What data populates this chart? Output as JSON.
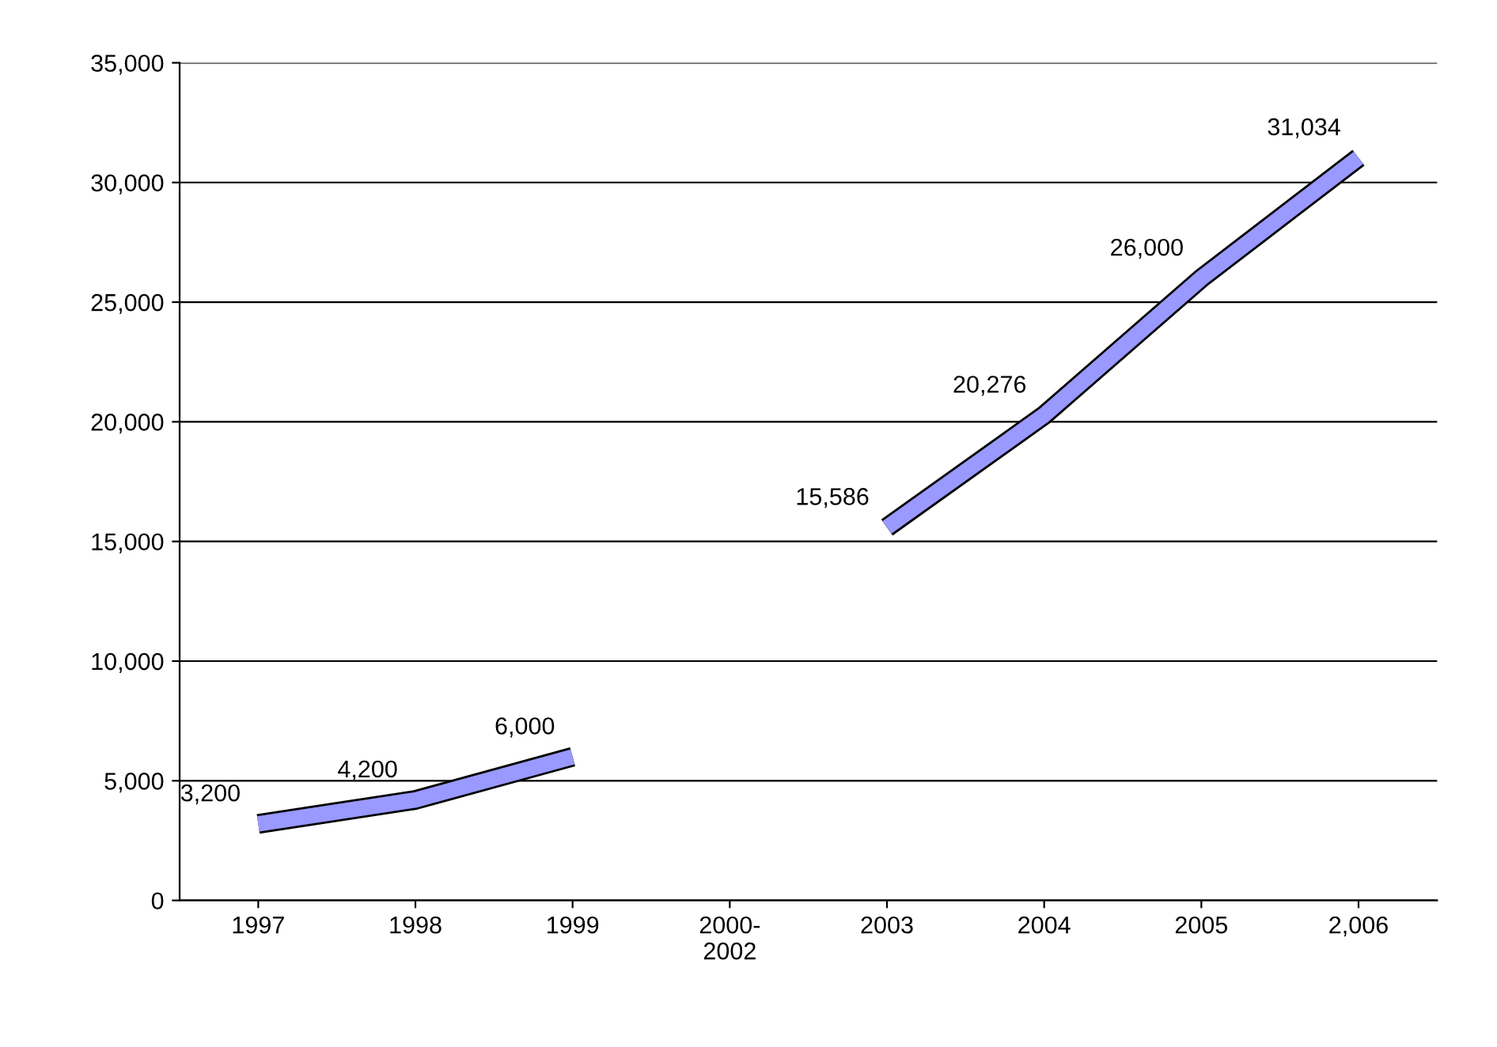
{
  "chart_data": {
    "type": "line",
    "categories": [
      "1997",
      "1998",
      "1999",
      "2000-\n2002",
      "2003",
      "2004",
      "2005",
      "2,006"
    ],
    "series": [
      {
        "color": "#9999ff",
        "values": [
          3200,
          4200,
          6000,
          null,
          15586,
          20276,
          26000,
          31034
        ],
        "value_labels": [
          "3,200",
          "4,200",
          "6,000",
          null,
          "15,586",
          "20,276",
          "26,000",
          "31,034"
        ]
      }
    ],
    "ylim": [
      0,
      35000
    ],
    "yticks": [
      {
        "value": 0,
        "label": "0"
      },
      {
        "value": 5000,
        "label": "5,000"
      },
      {
        "value": 10000,
        "label": "10,000"
      },
      {
        "value": 15000,
        "label": "15,000"
      },
      {
        "value": 20000,
        "label": "20,000"
      },
      {
        "value": 25000,
        "label": "25,000"
      },
      {
        "value": 30000,
        "label": "30,000"
      },
      {
        "value": 35000,
        "label": "35,000"
      }
    ],
    "grid": "y",
    "marker": "none",
    "line_style": "solid"
  }
}
